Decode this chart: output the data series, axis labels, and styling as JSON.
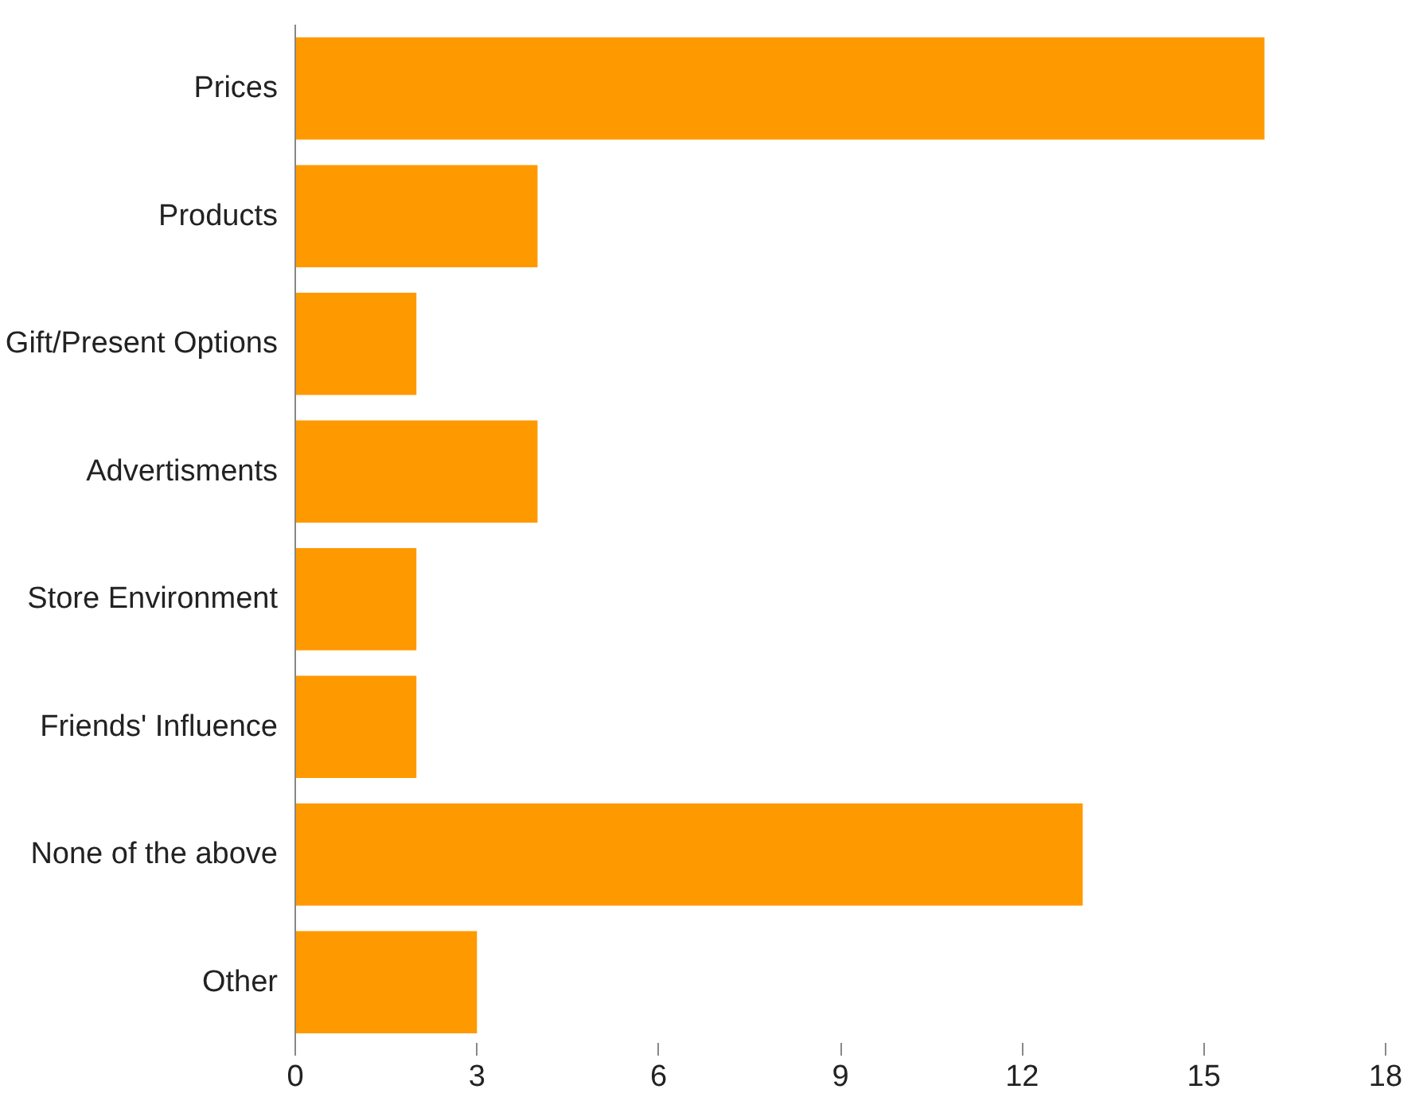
{
  "chart_data": {
    "type": "bar",
    "orientation": "horizontal",
    "categories": [
      "Prices",
      "Products",
      "Gift/Present Options",
      "Advertisments",
      "Store Environment",
      "Friends' Influence",
      "None of the above",
      "Other"
    ],
    "values": [
      16,
      4,
      2,
      4,
      2,
      2,
      13,
      3
    ],
    "color": "#ff9900",
    "xlim": [
      0,
      18
    ],
    "xticks": [
      0,
      3,
      6,
      9,
      12,
      15,
      18
    ],
    "grid": false
  }
}
